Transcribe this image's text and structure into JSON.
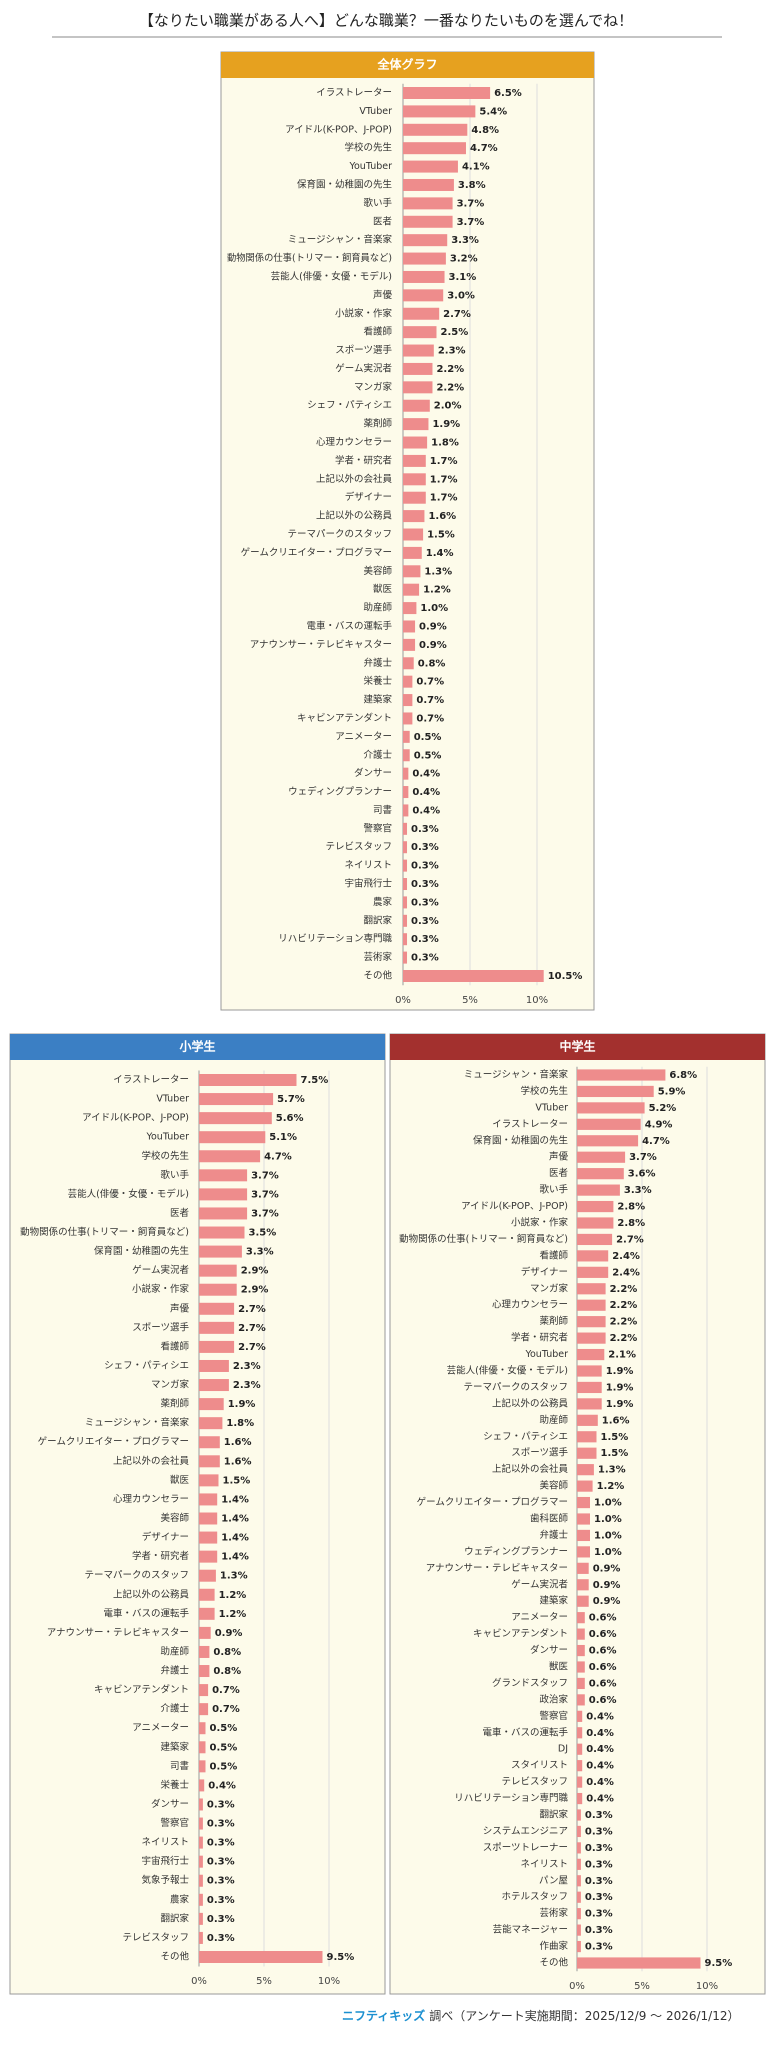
{
  "title": "【なりたい職業がある人へ】どんな職業？一番なりたいものを選んでね！",
  "footer": {
    "logo": "ニフティキッズ",
    "text": "調べ（アンケート実施期間：2025/12/9 ～ 2026/1/12）"
  },
  "chart_data": [
    {
      "type": "bar",
      "orientation": "horizontal",
      "title": "全体グラフ",
      "color": "#ee8c8c",
      "grid": true,
      "xlim": [
        0,
        14
      ],
      "xticks": [
        {
          "value": 0,
          "label": "0%"
        },
        {
          "value": 5,
          "label": "5%"
        },
        {
          "value": 10,
          "label": "10%"
        }
      ],
      "categories": [
        "イラストレーター",
        "VTuber",
        "アイドル(K-POP、J-POP)",
        "学校の先生",
        "YouTuber",
        "保育園・幼稚園の先生",
        "歌い手",
        "医者",
        "ミュージシャン・音楽家",
        "動物関係の仕事(トリマー・飼育員など)",
        "芸能人(俳優・女優・モデル)",
        "声優",
        "小説家・作家",
        "看護師",
        "スポーツ選手",
        "ゲーム実況者",
        "マンガ家",
        "シェフ・パティシエ",
        "薬剤師",
        "心理カウンセラー",
        "学者・研究者",
        "上記以外の会社員",
        "デザイナー",
        "上記以外の公務員",
        "テーマパークのスタッフ",
        "ゲームクリエイター・プログラマー",
        "美容師",
        "獣医",
        "助産師",
        "電車・バスの運転手",
        "アナウンサー・テレビキャスター",
        "弁護士",
        "栄養士",
        "建築家",
        "キャビンアテンダント",
        "アニメーター",
        "介護士",
        "ダンサー",
        "ウェディングプランナー",
        "司書",
        "警察官",
        "テレビスタッフ",
        "ネイリスト",
        "宇宙飛行士",
        "農家",
        "翻訳家",
        "リハビリテーション専門職",
        "芸術家",
        "その他"
      ],
      "values": [
        6.5,
        5.4,
        4.8,
        4.7,
        4.1,
        3.8,
        3.7,
        3.7,
        3.3,
        3.2,
        3.1,
        3.0,
        2.7,
        2.5,
        2.3,
        2.2,
        2.2,
        2.0,
        1.9,
        1.8,
        1.7,
        1.7,
        1.7,
        1.6,
        1.5,
        1.4,
        1.3,
        1.2,
        1.0,
        0.9,
        0.9,
        0.8,
        0.7,
        0.7,
        0.7,
        0.5,
        0.5,
        0.4,
        0.4,
        0.4,
        0.3,
        0.3,
        0.3,
        0.3,
        0.3,
        0.3,
        0.3,
        0.3,
        10.5
      ],
      "value_labels": [
        "6.5%",
        "5.4%",
        "4.8%",
        "4.7%",
        "4.1%",
        "3.8%",
        "3.7%",
        "3.7%",
        "3.3%",
        "3.2%",
        "3.1%",
        "3.0%",
        "2.7%",
        "2.5%",
        "2.3%",
        "2.2%",
        "2.2%",
        "2.0%",
        "1.9%",
        "1.8%",
        "1.7%",
        "1.7%",
        "1.7%",
        "1.6%",
        "1.5%",
        "1.4%",
        "1.3%",
        "1.2%",
        "1.0%",
        "0.9%",
        "0.9%",
        "0.8%",
        "0.7%",
        "0.7%",
        "0.7%",
        "0.5%",
        "0.5%",
        "0.4%",
        "0.4%",
        "0.4%",
        "0.3%",
        "0.3%",
        "0.3%",
        "0.3%",
        "0.3%",
        "0.3%",
        "0.3%",
        "0.3%",
        "10.5%"
      ]
    },
    {
      "type": "bar",
      "orientation": "horizontal",
      "title": "小学生",
      "color": "#ee8c8c",
      "grid": true,
      "xlim": [
        0,
        14
      ],
      "xticks": [
        {
          "value": 0,
          "label": "0%"
        },
        {
          "value": 5,
          "label": "5%"
        },
        {
          "value": 10,
          "label": "10%"
        }
      ],
      "categories": [
        "イラストレーター",
        "VTuber",
        "アイドル(K-POP、J-POP)",
        "YouTuber",
        "学校の先生",
        "歌い手",
        "芸能人(俳優・女優・モデル)",
        "医者",
        "動物関係の仕事(トリマー・飼育員など)",
        "保育園・幼稚園の先生",
        "ゲーム実況者",
        "小説家・作家",
        "声優",
        "スポーツ選手",
        "看護師",
        "シェフ・パティシエ",
        "マンガ家",
        "薬剤師",
        "ミュージシャン・音楽家",
        "ゲームクリエイター・プログラマー",
        "上記以外の会社員",
        "獣医",
        "心理カウンセラー",
        "美容師",
        "デザイナー",
        "学者・研究者",
        "テーマパークのスタッフ",
        "上記以外の公務員",
        "電車・バスの運転手",
        "アナウンサー・テレビキャスター",
        "助産師",
        "弁護士",
        "キャビンアテンダント",
        "介護士",
        "アニメーター",
        "建築家",
        "司書",
        "栄養士",
        "ダンサー",
        "警察官",
        "ネイリスト",
        "宇宙飛行士",
        "気象予報士",
        "農家",
        "翻訳家",
        "テレビスタッフ",
        "その他"
      ],
      "values": [
        7.5,
        5.7,
        5.6,
        5.1,
        4.7,
        3.7,
        3.7,
        3.7,
        3.5,
        3.3,
        2.9,
        2.9,
        2.7,
        2.7,
        2.7,
        2.3,
        2.3,
        1.9,
        1.8,
        1.6,
        1.6,
        1.5,
        1.4,
        1.4,
        1.4,
        1.4,
        1.3,
        1.2,
        1.2,
        0.9,
        0.8,
        0.8,
        0.7,
        0.7,
        0.5,
        0.5,
        0.5,
        0.4,
        0.3,
        0.3,
        0.3,
        0.3,
        0.3,
        0.3,
        0.3,
        0.3,
        9.5
      ],
      "value_labels": [
        "7.5%",
        "5.7%",
        "5.6%",
        "5.1%",
        "4.7%",
        "3.7%",
        "3.7%",
        "3.7%",
        "3.5%",
        "3.3%",
        "2.9%",
        "2.9%",
        "2.7%",
        "2.7%",
        "2.7%",
        "2.3%",
        "2.3%",
        "1.9%",
        "1.8%",
        "1.6%",
        "1.6%",
        "1.5%",
        "1.4%",
        "1.4%",
        "1.4%",
        "1.4%",
        "1.3%",
        "1.2%",
        "1.2%",
        "0.9%",
        "0.8%",
        "0.8%",
        "0.7%",
        "0.7%",
        "0.5%",
        "0.5%",
        "0.5%",
        "0.4%",
        "0.3%",
        "0.3%",
        "0.3%",
        "0.3%",
        "0.3%",
        "0.3%",
        "0.3%",
        "0.3%",
        "9.5%"
      ]
    },
    {
      "type": "bar",
      "orientation": "horizontal",
      "title": "中学生",
      "color": "#ee8c8c",
      "grid": true,
      "xlim": [
        0,
        14
      ],
      "xticks": [
        {
          "value": 0,
          "label": "0%"
        },
        {
          "value": 5,
          "label": "5%"
        },
        {
          "value": 10,
          "label": "10%"
        }
      ],
      "categories": [
        "ミュージシャン・音楽家",
        "学校の先生",
        "VTuber",
        "イラストレーター",
        "保育園・幼稚園の先生",
        "声優",
        "医者",
        "歌い手",
        "アイドル(K-POP、J-POP)",
        "小説家・作家",
        "動物関係の仕事(トリマー・飼育員など)",
        "看護師",
        "デザイナー",
        "マンガ家",
        "心理カウンセラー",
        "薬剤師",
        "学者・研究者",
        "YouTuber",
        "芸能人(俳優・女優・モデル)",
        "テーマパークのスタッフ",
        "上記以外の公務員",
        "助産師",
        "シェフ・パティシエ",
        "スポーツ選手",
        "上記以外の会社員",
        "美容師",
        "ゲームクリエイター・プログラマー",
        "歯科医師",
        "弁護士",
        "ウェディングプランナー",
        "アナウンサー・テレビキャスター",
        "ゲーム実況者",
        "建築家",
        "アニメーター",
        "キャビンアテンダント",
        "ダンサー",
        "獣医",
        "グランドスタッフ",
        "政治家",
        "警察官",
        "電車・バスの運転手",
        "DJ",
        "スタイリスト",
        "テレビスタッフ",
        "リハビリテーション専門職",
        "翻訳家",
        "システムエンジニア",
        "スポーツトレーナー",
        "ネイリスト",
        "パン屋",
        "ホテルスタッフ",
        "芸術家",
        "芸能マネージャー",
        "作曲家",
        "その他"
      ],
      "values": [
        6.8,
        5.9,
        5.2,
        4.9,
        4.7,
        3.7,
        3.6,
        3.3,
        2.8,
        2.8,
        2.7,
        2.4,
        2.4,
        2.2,
        2.2,
        2.2,
        2.2,
        2.1,
        1.9,
        1.9,
        1.9,
        1.6,
        1.5,
        1.5,
        1.3,
        1.2,
        1.0,
        1.0,
        1.0,
        1.0,
        0.9,
        0.9,
        0.9,
        0.6,
        0.6,
        0.6,
        0.6,
        0.6,
        0.6,
        0.4,
        0.4,
        0.4,
        0.4,
        0.4,
        0.4,
        0.3,
        0.3,
        0.3,
        0.3,
        0.3,
        0.3,
        0.3,
        0.3,
        0.3,
        9.5
      ],
      "value_labels": [
        "6.8%",
        "5.9%",
        "5.2%",
        "4.9%",
        "4.7%",
        "3.7%",
        "3.6%",
        "3.3%",
        "2.8%",
        "2.8%",
        "2.7%",
        "2.4%",
        "2.4%",
        "2.2%",
        "2.2%",
        "2.2%",
        "2.2%",
        "2.1%",
        "1.9%",
        "1.9%",
        "1.9%",
        "1.6%",
        "1.5%",
        "1.5%",
        "1.3%",
        "1.2%",
        "1.0%",
        "1.0%",
        "1.0%",
        "1.0%",
        "0.9%",
        "0.9%",
        "0.9%",
        "0.6%",
        "0.6%",
        "0.6%",
        "0.6%",
        "0.6%",
        "0.6%",
        "0.4%",
        "0.4%",
        "0.4%",
        "0.4%",
        "0.4%",
        "0.4%",
        "0.3%",
        "0.3%",
        "0.3%",
        "0.3%",
        "0.3%",
        "0.3%",
        "0.3%",
        "0.3%",
        "0.3%",
        "9.5%"
      ]
    }
  ]
}
